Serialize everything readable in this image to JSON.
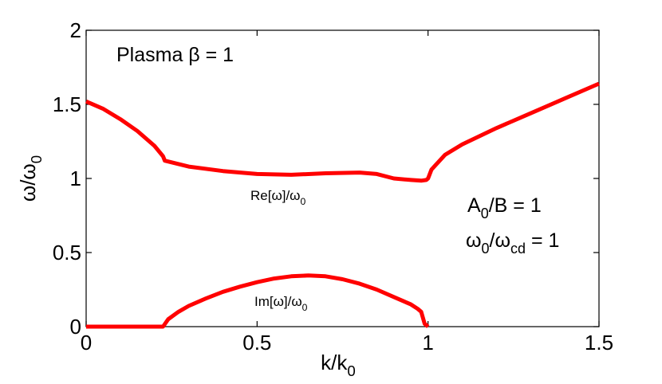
{
  "chart_data": {
    "type": "line",
    "xlabel": {
      "base": "k/k",
      "sub": "0"
    },
    "ylabel": {
      "base": "ω/ω",
      "sub": "0"
    },
    "xlim": [
      0,
      1.5
    ],
    "ylim": [
      0,
      2
    ],
    "xticks": [
      "0",
      "0.5",
      "1",
      "1.5"
    ],
    "yticks": [
      "0",
      "0.5",
      "1",
      "1.5",
      "2"
    ],
    "grid": false,
    "line_color": "#ff0000",
    "annotations": {
      "plasma_beta": "Plasma β = 1",
      "amplitude": {
        "base": "A",
        "sub": "0",
        "rest": "/B = 1"
      },
      "frequency_ratio": {
        "base": "ω",
        "sub1": "0",
        "mid": "/ω",
        "sub2": "cd",
        "rest": " = 1"
      }
    },
    "series": [
      {
        "label": {
          "base": "Re[ω]/ω",
          "sub": "0"
        },
        "x": [
          0,
          0.05,
          0.1,
          0.15,
          0.2,
          0.225,
          0.23,
          0.3,
          0.4,
          0.5,
          0.6,
          0.7,
          0.8,
          0.85,
          0.9,
          0.95,
          0.98,
          0.995,
          1.0,
          1.01,
          1.05,
          1.1,
          1.2,
          1.3,
          1.4,
          1.5
        ],
        "y": [
          1.52,
          1.47,
          1.4,
          1.32,
          1.22,
          1.15,
          1.12,
          1.08,
          1.05,
          1.03,
          1.025,
          1.035,
          1.04,
          1.03,
          1.0,
          0.99,
          0.985,
          0.99,
          1.0,
          1.06,
          1.16,
          1.23,
          1.34,
          1.44,
          1.54,
          1.64
        ]
      },
      {
        "label": {
          "base": "Im[ω]/ω",
          "sub": "0"
        },
        "x": [
          0,
          0.1,
          0.2,
          0.225,
          0.24,
          0.27,
          0.3,
          0.35,
          0.4,
          0.45,
          0.5,
          0.55,
          0.6,
          0.65,
          0.7,
          0.75,
          0.8,
          0.85,
          0.9,
          0.95,
          0.97,
          0.98,
          0.99,
          1.0
        ],
        "y": [
          0,
          0,
          0,
          0,
          0.05,
          0.1,
          0.14,
          0.19,
          0.235,
          0.27,
          0.3,
          0.325,
          0.34,
          0.345,
          0.34,
          0.32,
          0.29,
          0.25,
          0.2,
          0.15,
          0.12,
          0.1,
          0.02,
          0
        ]
      }
    ]
  }
}
